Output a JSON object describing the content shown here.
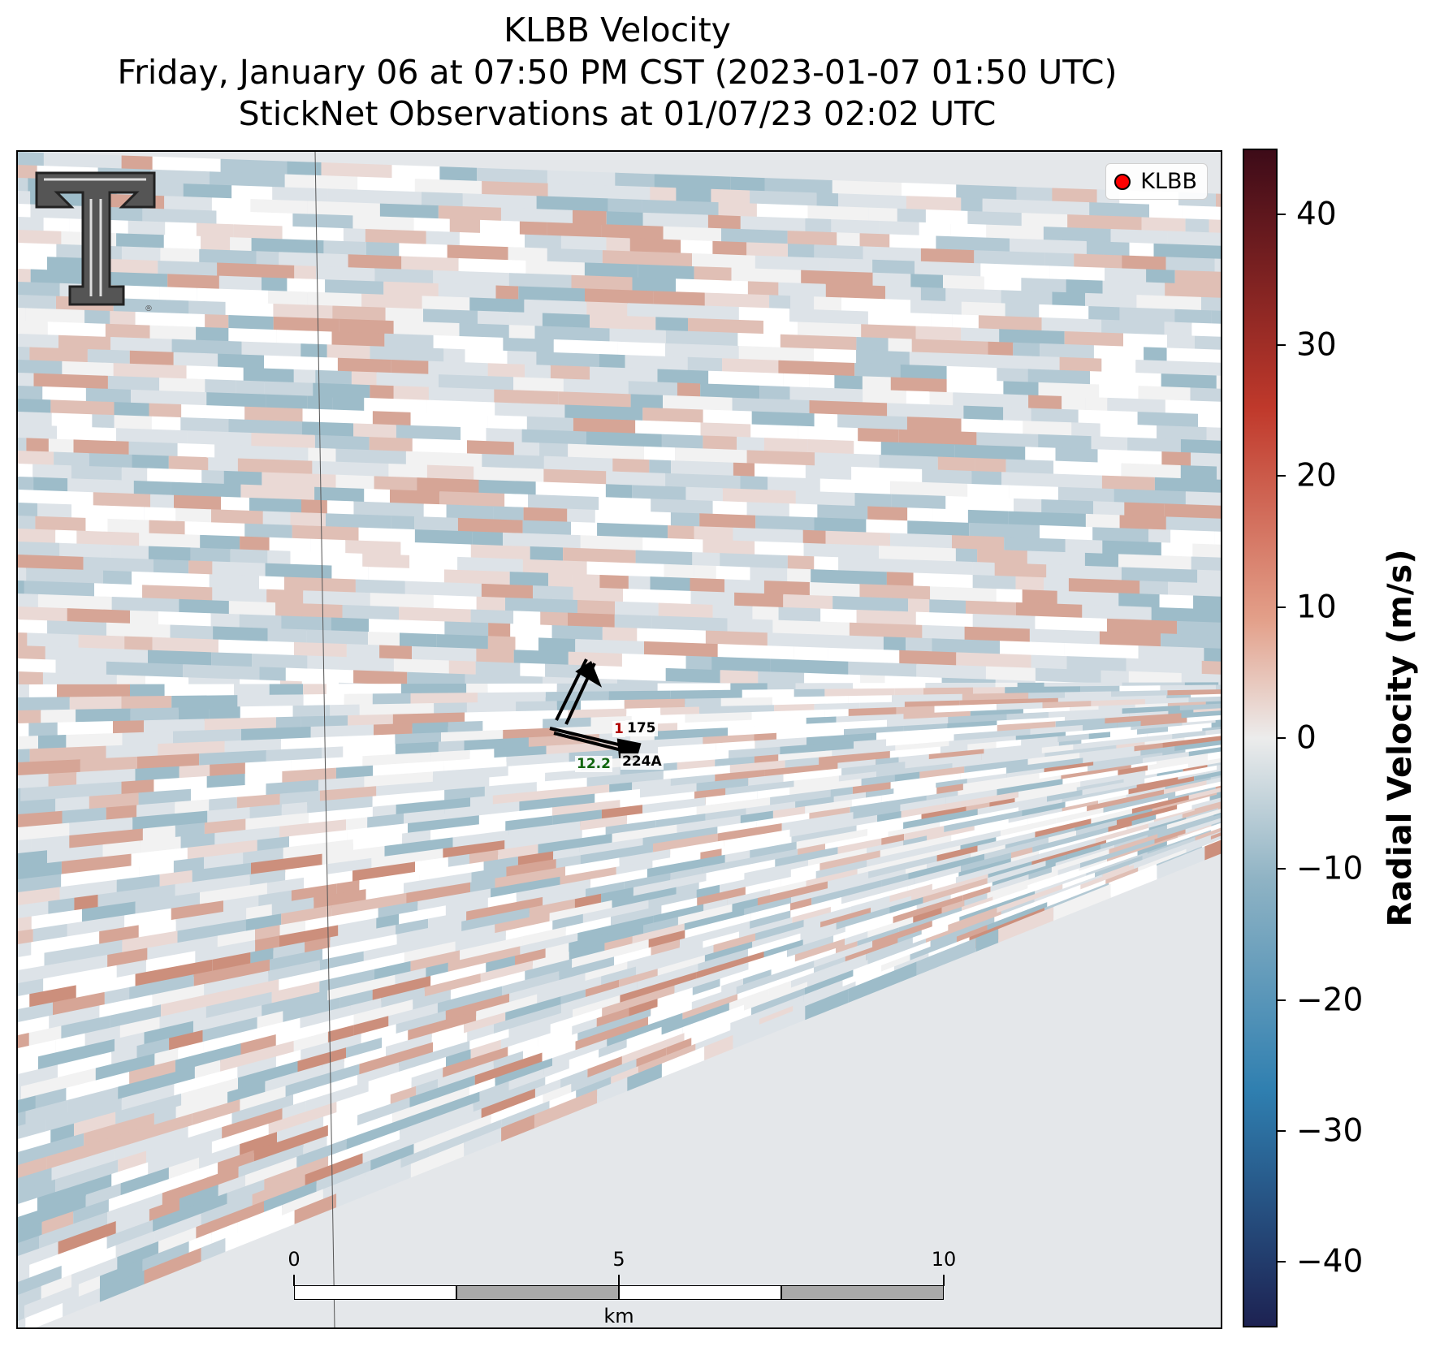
{
  "title": {
    "line1": "KLBB Velocity",
    "line2": "Friday, January 06 at 07:50 PM CST (2023-01-07 01:50 UTC)",
    "line3": "StickNet Observations at 01/07/23 02:02 UTC"
  },
  "legend": {
    "label": "KLBB",
    "marker_color": "#ff0000"
  },
  "logo": {
    "icon": "texas-tech-double-t-logo"
  },
  "stations": {
    "a": {
      "id": "175",
      "temp_fragment": "1"
    },
    "b": {
      "id": "224A",
      "value": "12.2"
    }
  },
  "scale_bar": {
    "labels": [
      "0",
      "5",
      "10"
    ],
    "unit": "km"
  },
  "colorbar": {
    "label": "Radial Velocity (m/s)",
    "ticks": [
      "40",
      "30",
      "20",
      "10",
      "0",
      "−10",
      "−20",
      "−30",
      "−40"
    ],
    "range": [
      -45,
      45
    ],
    "colors": {
      "max": "#3d0b18",
      "high": "#c0392b",
      "mid_high": "#e3a08a",
      "zero": "#ececec",
      "mid_low": "#8fb3c4",
      "low": "#2f7fb0",
      "min": "#1d2252"
    }
  }
}
